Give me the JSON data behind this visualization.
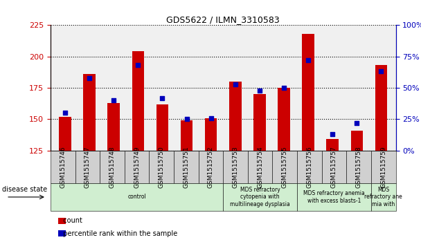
{
  "title": "GDS5622 / ILMN_3310583",
  "samples": [
    "GSM1515746",
    "GSM1515747",
    "GSM1515748",
    "GSM1515749",
    "GSM1515750",
    "GSM1515751",
    "GSM1515752",
    "GSM1515753",
    "GSM1515754",
    "GSM1515755",
    "GSM1515756",
    "GSM1515757",
    "GSM1515758",
    "GSM1515759"
  ],
  "counts": [
    152,
    186,
    163,
    204,
    162,
    149,
    151,
    180,
    170,
    175,
    218,
    134,
    141,
    193
  ],
  "percentiles": [
    30,
    58,
    40,
    68,
    42,
    25,
    26,
    53,
    48,
    50,
    72,
    13,
    22,
    63
  ],
  "ylim_left": [
    125,
    225
  ],
  "ylim_right": [
    0,
    100
  ],
  "yticks_left": [
    125,
    150,
    175,
    200,
    225
  ],
  "yticks_right": [
    0,
    25,
    50,
    75,
    100
  ],
  "bar_color": "#cc0000",
  "dot_color": "#0000bb",
  "bar_width": 0.5,
  "dot_size": 22,
  "bg_color": "#f0f0f0",
  "grid_color": "#000000",
  "xlabel_bg": "#d0d0d0",
  "disease_groups": [
    {
      "label": "control",
      "start": 0,
      "end": 7,
      "color": "#d0eed0"
    },
    {
      "label": "MDS refractory\ncytopenia with\nmultilineage dysplasia",
      "start": 7,
      "end": 10,
      "color": "#d0eed0"
    },
    {
      "label": "MDS refractory anemia\nwith excess blasts-1",
      "start": 10,
      "end": 13,
      "color": "#d0eed0"
    },
    {
      "label": "MDS\nrefractory ane\nmia with",
      "start": 13,
      "end": 14,
      "color": "#d0eed0"
    }
  ],
  "disease_state_label": "disease state",
  "legend_count_label": "count",
  "legend_pct_label": "percentile rank within the sample"
}
